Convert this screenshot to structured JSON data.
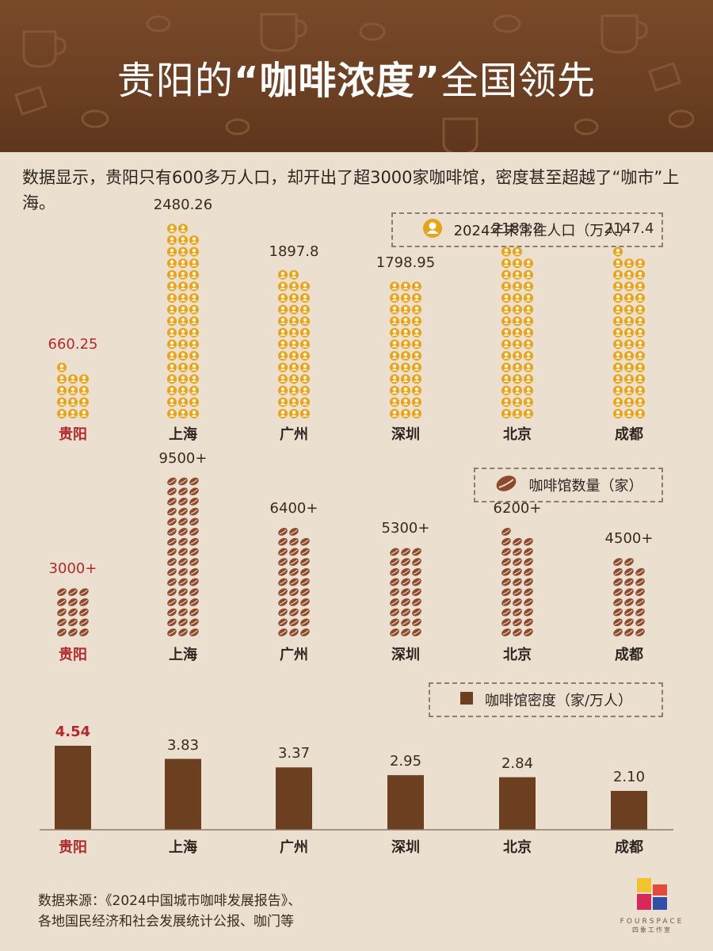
{
  "header": {
    "title_prefix": "贵阳的",
    "title_highlight": "“咖啡浓度”",
    "title_suffix": "全国领先"
  },
  "intro": "数据显示，贵阳只有600多万人口，却开出了超3000家咖啡馆，密度甚至超越了“咖市”上海。",
  "source": {
    "line1": "数据来源：《2024中国城市咖啡发展报告》、",
    "line2": "各地国民经济和社会发展统计公报、咖门等"
  },
  "logo": {
    "text": "FOURSPACE",
    "sub": "四象工作室"
  },
  "colors": {
    "header_bg": "#6b3f22",
    "page_bg": "#ebdfcf",
    "highlight": "#b5282c",
    "person_icon": "#e8a317",
    "bean": "#8b4a2e",
    "bar": "#6b3f1f"
  },
  "chart_data": [
    {
      "type": "bar",
      "legend": "2024年末常住人口（万人）",
      "legend_icon": "person-icon",
      "categories": [
        "贵阳",
        "上海",
        "广州",
        "深圳",
        "北京",
        "成都"
      ],
      "values": [
        660.25,
        2480.26,
        1897.8,
        1798.95,
        2183.2,
        2147.4
      ],
      "value_labels": [
        "660.25",
        "2480.26",
        "1897.8",
        "1798.95",
        "2183.2",
        "2147.4"
      ],
      "highlight": "贵阳"
    },
    {
      "type": "bar",
      "legend": "咖啡馆数量（家）",
      "legend_icon": "coffee-bean-icon",
      "categories": [
        "贵阳",
        "上海",
        "广州",
        "深圳",
        "北京",
        "成都"
      ],
      "values": [
        3000,
        9500,
        6400,
        5300,
        6200,
        4500
      ],
      "value_labels": [
        "3000+",
        "9500+",
        "6400+",
        "5300+",
        "6200+",
        "4500+"
      ],
      "highlight": "贵阳"
    },
    {
      "type": "bar",
      "legend": "咖啡馆密度（家/万人）",
      "legend_icon": "bar-square-icon",
      "categories": [
        "贵阳",
        "上海",
        "广州",
        "深圳",
        "北京",
        "成都"
      ],
      "values": [
        4.54,
        3.83,
        3.37,
        2.95,
        2.84,
        2.1
      ],
      "value_labels": [
        "4.54",
        "3.83",
        "3.37",
        "2.95",
        "2.84",
        "2.10"
      ],
      "highlight": "贵阳"
    }
  ]
}
